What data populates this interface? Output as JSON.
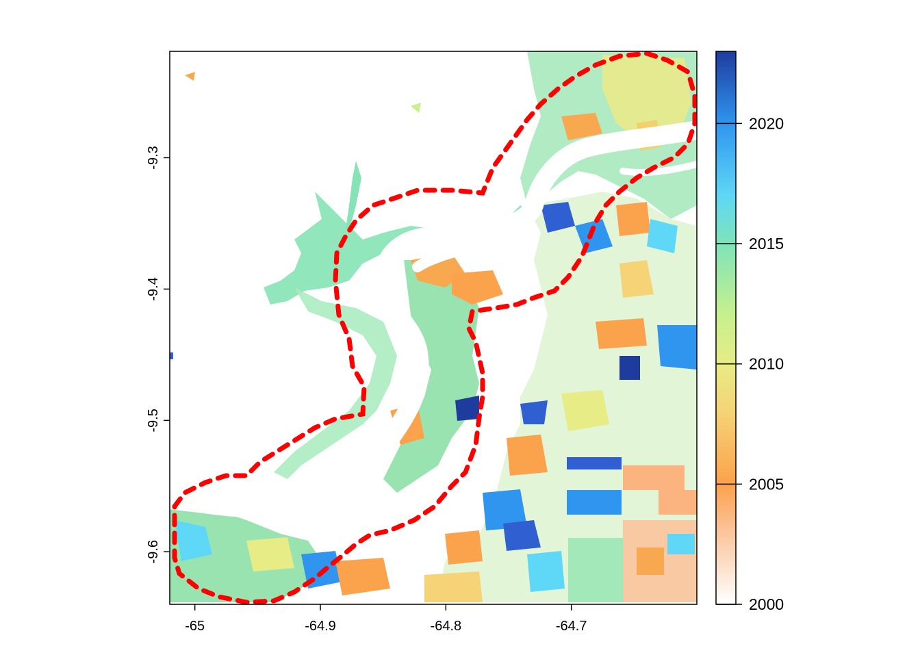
{
  "map": {
    "x_axis": {
      "ticks": [
        {
          "value": -65.0,
          "label": "-65"
        },
        {
          "value": -64.9,
          "label": "-64.9"
        },
        {
          "value": -64.8,
          "label": "-64.8"
        },
        {
          "value": -64.7,
          "label": "-64.7"
        }
      ],
      "range": [
        -65.02,
        -64.6
      ]
    },
    "y_axis": {
      "ticks": [
        {
          "value": -9.3,
          "label": "-9.3"
        },
        {
          "value": -9.4,
          "label": "-9.4"
        },
        {
          "value": -9.5,
          "label": "-9.5"
        },
        {
          "value": -9.6,
          "label": "-9.6"
        }
      ],
      "range": [
        -9.64,
        -9.219
      ]
    },
    "boundary_color": "#ff0000",
    "river_color": "#ffffff"
  },
  "legend": {
    "min": 2000,
    "max": 2023,
    "ticks": [
      {
        "value": 2000,
        "label": "2000"
      },
      {
        "value": 2005,
        "label": "2005"
      },
      {
        "value": 2010,
        "label": "2010"
      },
      {
        "value": 2015,
        "label": "2015"
      },
      {
        "value": 2020,
        "label": "2020"
      }
    ],
    "color_stops": [
      {
        "value": 2000,
        "color": "#ffffff"
      },
      {
        "value": 2003,
        "color": "#fbc49c"
      },
      {
        "value": 2005,
        "color": "#fba24c"
      },
      {
        "value": 2008,
        "color": "#f6d376"
      },
      {
        "value": 2010,
        "color": "#e7ec87"
      },
      {
        "value": 2012,
        "color": "#c7f08e"
      },
      {
        "value": 2015,
        "color": "#7fe3b9"
      },
      {
        "value": 2017,
        "color": "#5fd7f6"
      },
      {
        "value": 2020,
        "color": "#2f95ef"
      },
      {
        "value": 2023,
        "color": "#1e3c9e"
      }
    ]
  }
}
